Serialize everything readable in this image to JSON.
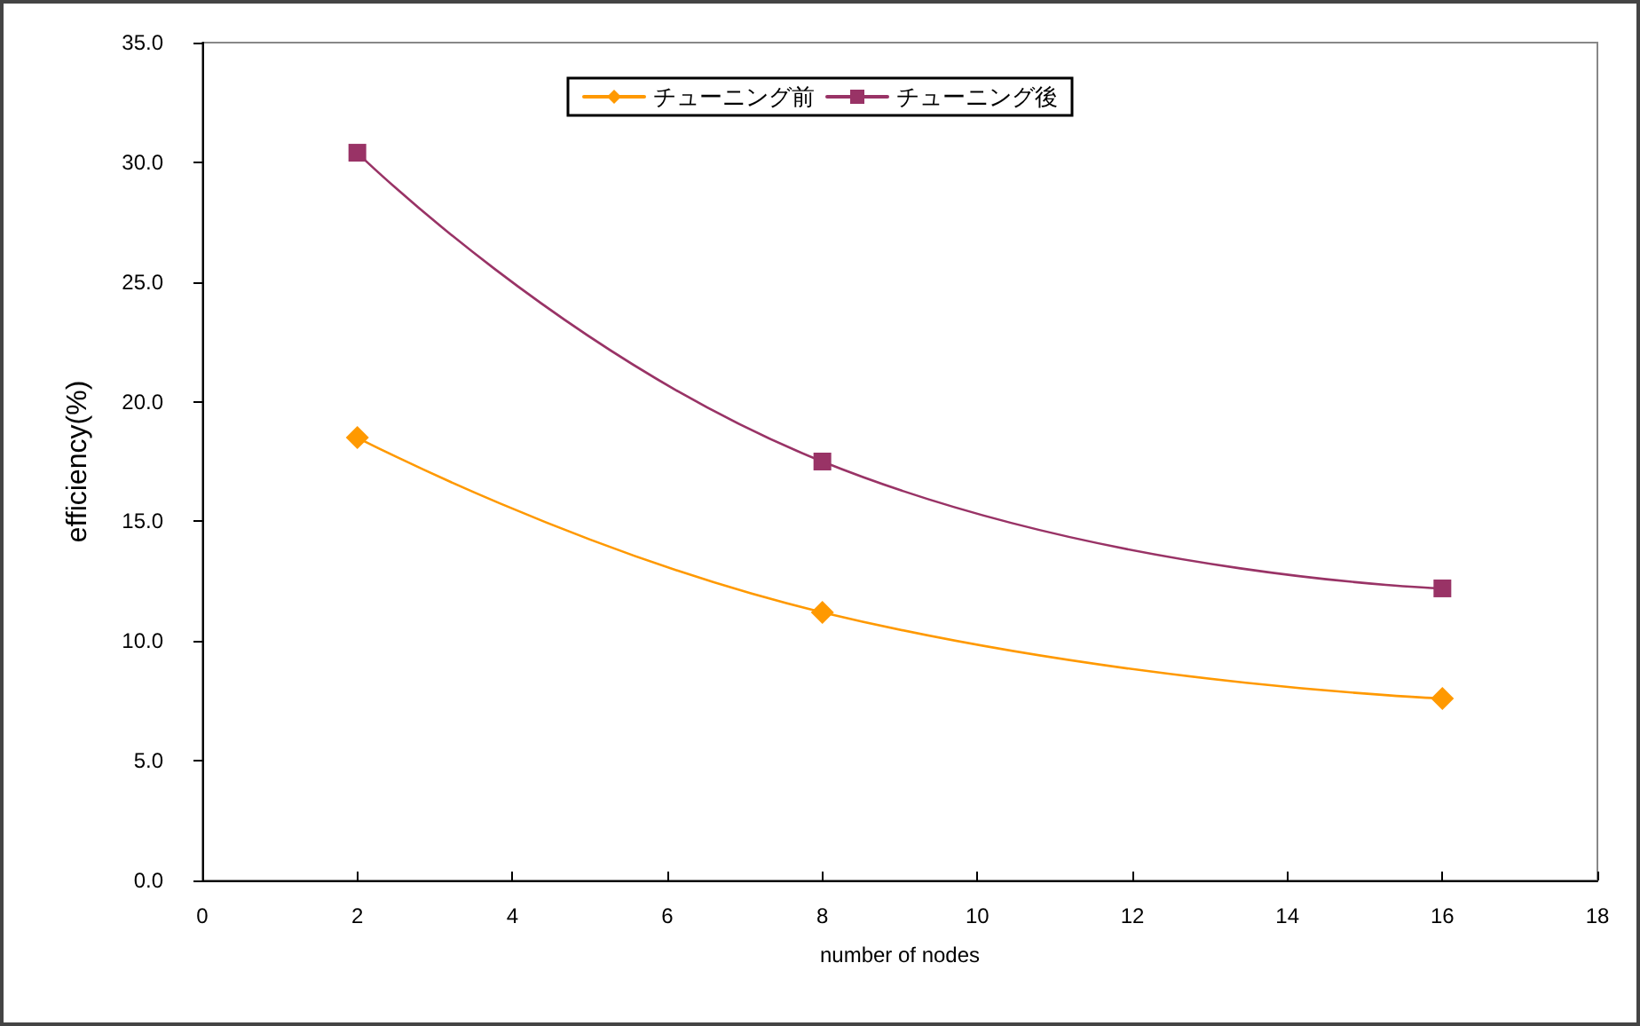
{
  "chart_data": {
    "type": "line",
    "xlabel": "number of nodes",
    "ylabel": "efficiency(%)",
    "x": [
      2,
      8,
      16
    ],
    "series": [
      {
        "name": "チューニング前",
        "color": "#ff9900",
        "marker": "diamond",
        "values": [
          18.5,
          11.2,
          7.6
        ]
      },
      {
        "name": "チューニング後",
        "color": "#993366",
        "marker": "square",
        "values": [
          30.4,
          17.5,
          12.2
        ]
      }
    ],
    "xlim": [
      0,
      18
    ],
    "xticks": [
      0,
      2,
      4,
      6,
      8,
      10,
      12,
      14,
      16,
      18
    ],
    "ylim": [
      0,
      35
    ],
    "yticks": [
      {
        "value": 0,
        "label": "0.0"
      },
      {
        "value": 5,
        "label": "5.0"
      },
      {
        "value": 10,
        "label": "10.0"
      },
      {
        "value": 15,
        "label": "15.0"
      },
      {
        "value": 20,
        "label": "20.0"
      },
      {
        "value": 25,
        "label": "25.0"
      },
      {
        "value": 30,
        "label": "30.0"
      },
      {
        "value": 35,
        "label": "35.0"
      }
    ],
    "grid": false,
    "legend": "top",
    "line_style": "solid"
  }
}
